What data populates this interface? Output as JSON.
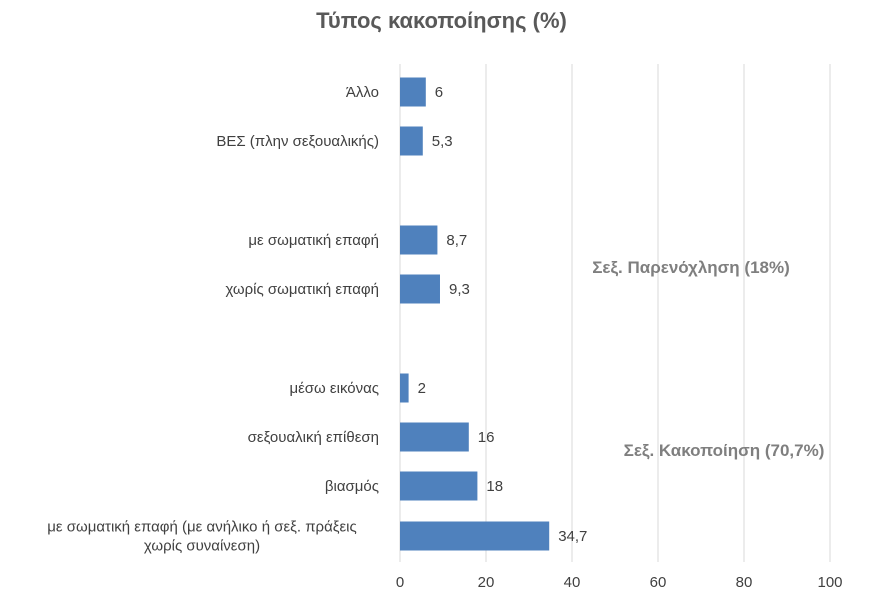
{
  "chart_data": {
    "type": "bar",
    "orientation": "horizontal",
    "title": "Τύπος κακοποίησης (%)",
    "categories": [
      "Άλλο",
      "ΒΕΣ (πλην σεξουαλικής)",
      "με σωματική επαφή",
      "χωρίς σωματική επαφή",
      "μέσω εικόνας",
      "σεξουαλική επίθεση",
      "βιασμός",
      [
        "με σωματική επαφή (με ανήλικο ή σεξ. πράξεις",
        "χωρίς συναίνεση)"
      ]
    ],
    "values": [
      6,
      5.3,
      8.7,
      9.3,
      2,
      16,
      18,
      34.7
    ],
    "value_labels": [
      "6",
      "5,3",
      "8,7",
      "9,3",
      "2",
      "16",
      "18",
      "34,7"
    ],
    "xlim": [
      0,
      100
    ],
    "xticks": [
      "0",
      "20",
      "40",
      "60",
      "80",
      "100"
    ],
    "group_labels": [
      "Σεξ. Παρενόχληση (18%)",
      "Σεξ. Κακοποίηση (70,7%)"
    ],
    "grid": true,
    "legend": "none",
    "bar_color": "#4f81bd"
  }
}
